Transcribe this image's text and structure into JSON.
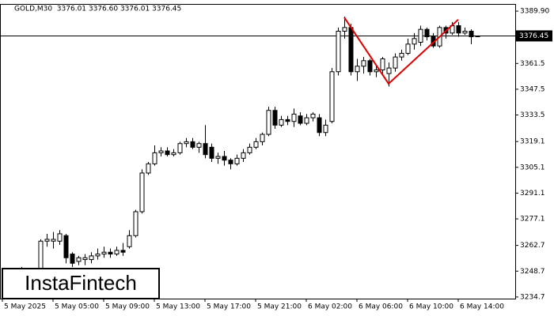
{
  "chart_data": {
    "type": "candlestick",
    "header": "GOLD,M30  3376.01 3376.60 3376.01 3376.45",
    "categories": [
      "5 May 2025",
      null,
      null,
      null,
      null,
      null,
      null,
      null,
      "5 May 05:00",
      null,
      null,
      null,
      null,
      null,
      null,
      null,
      "5 May 09:00",
      null,
      null,
      null,
      null,
      null,
      null,
      null,
      "5 May 13:00",
      null,
      null,
      null,
      null,
      null,
      null,
      null,
      "5 May 17:00",
      null,
      null,
      null,
      null,
      null,
      null,
      null,
      "5 May 21:00",
      null,
      null,
      null,
      null,
      null,
      null,
      null,
      "6 May 02:00",
      null,
      null,
      null,
      null,
      null,
      null,
      null,
      "6 May 06:00",
      null,
      null,
      null,
      null,
      null,
      null,
      null,
      "6 May 10:00",
      null,
      null,
      null,
      null,
      null,
      null,
      null,
      "6 May 14:00",
      null,
      null,
      null
    ],
    "open": [
      null,
      null,
      null,
      3249,
      null,
      null,
      3235,
      3265,
      3265,
      3265,
      3268,
      3258,
      3254,
      3255,
      3255,
      3257,
      3258,
      3259,
      3258,
      3260,
      3262,
      3268,
      3281,
      3302,
      3307,
      3313,
      3314,
      3312,
      3313,
      3318,
      3319,
      3316,
      3318,
      3316,
      3310,
      3311,
      3309,
      3307,
      3310,
      3313,
      3316,
      3319,
      3323,
      3336,
      3328,
      3331,
      3330,
      3333,
      3329,
      3332,
      3332,
      3324,
      3330,
      3357,
      3379,
      3381,
      3357,
      3360,
      3363,
      3357,
      3358,
      3356,
      3359,
      3365,
      3367,
      3372,
      3373,
      3380,
      3376,
      3371,
      3381,
      3378,
      3382,
      3378,
      3379,
      3376.01
    ],
    "high": [
      null,
      null,
      null,
      3251,
      null,
      null,
      3266,
      3269,
      3270,
      3271,
      3269,
      3259,
      3257,
      3258,
      3259,
      3261,
      3262,
      3261,
      3262,
      3264,
      3271,
      3282,
      3304,
      3308,
      3317,
      3316,
      3316,
      3315,
      3319,
      3321,
      3321,
      3319,
      3328,
      3318,
      3313,
      3314,
      3310,
      3312,
      3315,
      3318,
      3321,
      3324,
      3338,
      3338,
      3333,
      3333,
      3337,
      3335,
      3334,
      3335,
      3334,
      3331,
      3359,
      3381,
      3387,
      3383,
      3364,
      3365,
      3364,
      3361,
      3365,
      3362,
      3367,
      3369,
      3375,
      3378,
      3382,
      3381,
      3378,
      3382,
      3382,
      3384,
      3384,
      3381,
      3380,
      3376.6
    ],
    "low": [
      null,
      null,
      null,
      3234,
      null,
      null,
      3234,
      3262,
      3261,
      3263,
      3253,
      3251,
      3252,
      3252,
      3253,
      3255,
      3256,
      3256,
      3257,
      3257,
      3261,
      3267,
      3280,
      3301,
      3306,
      3311,
      3311,
      3311,
      3312,
      3316,
      3315,
      3313,
      3310,
      3308,
      3307,
      3306,
      3304,
      3306,
      3308,
      3312,
      3315,
      3317,
      3322,
      3326,
      3327,
      3328,
      3327,
      3328,
      3328,
      3330,
      3322,
      3322,
      3329,
      3355,
      3375,
      3355,
      3352,
      3356,
      3355,
      3354,
      3355,
      3349,
      3357,
      3363,
      3366,
      3369,
      3371,
      3374,
      3370,
      3370,
      3375,
      3377,
      3376,
      3377,
      3372,
      3376.01
    ],
    "close": [
      null,
      null,
      null,
      3249,
      null,
      null,
      3265,
      3266,
      3266,
      3269,
      3256,
      3253,
      3256,
      3256,
      3257,
      3258,
      3259,
      3258,
      3260,
      3259,
      3268,
      3281,
      3302,
      3307,
      3313,
      3314,
      3312,
      3313,
      3318,
      3319,
      3316,
      3318,
      3312,
      3310,
      3311,
      3309,
      3307,
      3310,
      3313,
      3316,
      3319,
      3323,
      3336,
      3328,
      3331,
      3330,
      3334,
      3329,
      3332,
      3334,
      3324,
      3328,
      3357,
      3379,
      3381,
      3357,
      3360,
      3363,
      3357,
      3358,
      3364,
      3359,
      3365,
      3367,
      3372,
      3375,
      3380,
      3376,
      3371,
      3381,
      3378,
      3382,
      3378,
      3379,
      3376,
      3376.45
    ],
    "up_color": "#ffffff",
    "down_color": "#000000",
    "ylim": [
      3233.8,
      3393.8
    ],
    "yticks": [
      {
        "value": 3389.9,
        "label": "3389.90"
      },
      3361.5,
      3347.5,
      3333.5,
      3319.1,
      3305.1,
      3291.1,
      3277.1,
      3262.7,
      3248.7,
      3234.7
    ],
    "last_price": 3376.45,
    "pattern": {
      "color": "#e00000",
      "x": [
        54,
        61,
        72
      ],
      "y": [
        3386.5,
        3350.5,
        3385.3
      ]
    }
  },
  "logo": "InstaFintech"
}
